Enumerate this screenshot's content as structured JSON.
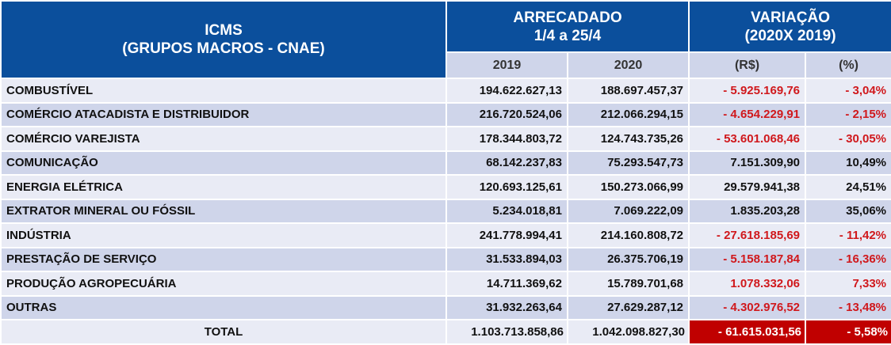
{
  "header": {
    "col1_line1": "ICMS",
    "col1_line2": "(GRUPOS MACROS - CNAE)",
    "arrec_line1": "ARRECADADO",
    "arrec_line2": "1/4 a 25/4",
    "var_line1": "VARIAÇÃO",
    "var_line2": "(2020X 2019)",
    "sub": [
      "2019",
      "2020",
      "(R$)",
      "(%)"
    ]
  },
  "rows": [
    {
      "name": "COMBUSTÍVEL",
      "y2019": "194.622.627,13",
      "y2020": "188.697.457,37",
      "var": "- 5.925.169,76",
      "pct": "- 3,04%"
    },
    {
      "name": "COMÉRCIO ATACADISTA E DISTRIBUIDOR",
      "y2019": "216.720.524,06",
      "y2020": "212.066.294,15",
      "var": "- 4.654.229,91",
      "pct": "- 2,15%"
    },
    {
      "name": "COMÉRCIO VAREJISTA",
      "y2019": "178.344.803,72",
      "y2020": "124.743.735,26",
      "var": "- 53.601.068,46",
      "pct": "- 30,05%"
    },
    {
      "name": "COMUNICAÇÃO",
      "y2019": "68.142.237,83",
      "y2020": "75.293.547,73",
      "var": "7.151.309,90",
      "pct": "10,49%"
    },
    {
      "name": "ENERGIA ELÉTRICA",
      "y2019": "120.693.125,61",
      "y2020": "150.273.066,99",
      "var": "29.579.941,38",
      "pct": "24,51%"
    },
    {
      "name": "EXTRATOR MINERAL OU FÓSSIL",
      "y2019": "5.234.018,81",
      "y2020": "7.069.222,09",
      "var": "1.835.203,28",
      "pct": "35,06%"
    },
    {
      "name": "INDÚSTRIA",
      "y2019": "241.778.994,41",
      "y2020": "214.160.808,72",
      "var": "- 27.618.185,69",
      "pct": "- 11,42%"
    },
    {
      "name": "PRESTAÇÃO DE SERVIÇO",
      "y2019": "31.533.894,03",
      "y2020": "26.375.706,19",
      "var": "- 5.158.187,84",
      "pct": "- 16,36%"
    },
    {
      "name": "PRODUÇÃO AGROPECUÁRIA",
      "y2019": "14.711.369,62",
      "y2020": "15.789.701,68",
      "var": "1.078.332,06",
      "pct": "7,33%"
    },
    {
      "name": "OUTRAS",
      "y2019": "31.932.263,64",
      "y2020": "27.629.287,12",
      "var": "- 4.302.976,52",
      "pct": "- 13,48%"
    }
  ],
  "total": {
    "name": "TOTAL",
    "y2019": "1.103.713.858,86",
    "y2020": "1.042.098.827,30",
    "var": "- 61.615.031,56",
    "pct": "- 5,58%"
  },
  "red_rows": [
    0,
    1,
    2,
    6,
    7,
    8,
    9
  ],
  "colors": {
    "header": "#0B4F9C",
    "negative": "#D0181C",
    "total_bg": "#C00000"
  }
}
